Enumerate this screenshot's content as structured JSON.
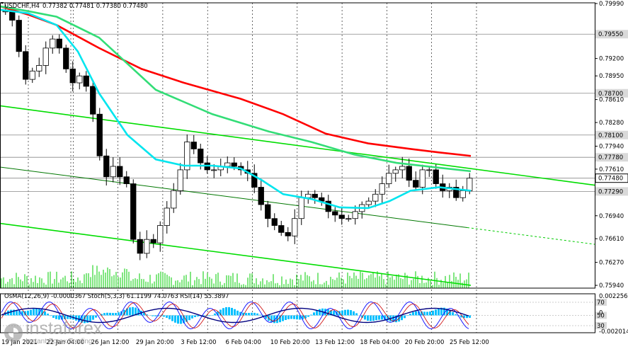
{
  "header": {
    "symbol": "USDCHF,H4",
    "ohlc": "0.77382 0.77481 0.77380 0.77480",
    "indicators": "OsMA(12,26,9) -0.0000367   Stoch(5,3,3) 61.1199 74.0763   RSI(14) 55.3897"
  },
  "logo": {
    "brand": "instaforex",
    "slogan": "Instant Forex Trading"
  },
  "chart_data": {
    "type": "candlestick",
    "price_axis": {
      "ylim": [
        0.759,
        0.8
      ],
      "tick_labels": [
        "0.79990",
        "0.79200",
        "0.78950",
        "0.78610",
        "0.78280",
        "0.77940",
        "0.77610",
        "0.76940",
        "0.76610",
        "0.76270",
        "0.75940"
      ],
      "tick_values": [
        0.7999,
        0.792,
        0.7895,
        0.7861,
        0.7828,
        0.7794,
        0.7761,
        0.7694,
        0.7661,
        0.7627,
        0.7594
      ]
    },
    "level_labels": [
      {
        "label": "0.79550",
        "value": 0.7955,
        "highlight": false
      },
      {
        "label": "0.78700",
        "value": 0.787,
        "highlight": false
      },
      {
        "label": "0.78100",
        "value": 0.781,
        "highlight": false
      },
      {
        "label": "0.77780",
        "value": 0.7778,
        "highlight": false
      },
      {
        "label": "0.77480",
        "value": 0.7748,
        "highlight": true
      },
      {
        "label": "0.77290",
        "value": 0.7729,
        "highlight": false
      }
    ],
    "time_labels": [
      "19 Jan 2021",
      "22 Jan 04:00",
      "26 Jan 12:00",
      "29 Jan 20:00",
      "3 Feb 12:00",
      "6 Feb 04:00",
      "10 Feb 20:00",
      "13 Feb 12:00",
      "18 Feb 04:00",
      "20 Feb 20:00",
      "25 Feb 12:00"
    ],
    "ma_series": [
      {
        "color": "#ff0000",
        "points": [
          [
            0,
            0.7995
          ],
          [
            40,
            0.7983
          ],
          [
            80,
            0.7968
          ],
          [
            140,
            0.7935
          ],
          [
            200,
            0.7905
          ],
          [
            260,
            0.7885
          ],
          [
            340,
            0.7862
          ],
          [
            400,
            0.784
          ],
          [
            460,
            0.7812
          ],
          [
            520,
            0.7798
          ],
          [
            580,
            0.779
          ],
          [
            620,
            0.7785
          ],
          [
            665,
            0.778
          ]
        ]
      },
      {
        "color": "#33dd77",
        "points": [
          [
            0,
            0.7995
          ],
          [
            40,
            0.7988
          ],
          [
            80,
            0.798
          ],
          [
            140,
            0.795
          ],
          [
            220,
            0.7875
          ],
          [
            300,
            0.784
          ],
          [
            380,
            0.7815
          ],
          [
            440,
            0.78
          ],
          [
            500,
            0.7782
          ],
          [
            560,
            0.777
          ],
          [
            620,
            0.7763
          ],
          [
            665,
            0.7758
          ]
        ]
      },
      {
        "color": "#00e5ee",
        "points": [
          [
            0,
            0.799
          ],
          [
            40,
            0.7985
          ],
          [
            80,
            0.7968
          ],
          [
            110,
            0.793
          ],
          [
            140,
            0.787
          ],
          [
            180,
            0.781
          ],
          [
            220,
            0.7775
          ],
          [
            260,
            0.7766
          ],
          [
            300,
            0.7766
          ],
          [
            340,
            0.7762
          ],
          [
            370,
            0.7745
          ],
          [
            400,
            0.7725
          ],
          [
            440,
            0.7718
          ],
          [
            480,
            0.7706
          ],
          [
            520,
            0.7705
          ],
          [
            550,
            0.7715
          ],
          [
            580,
            0.773
          ],
          [
            620,
            0.7735
          ],
          [
            665,
            0.773
          ]
        ]
      }
    ],
    "trend_lines": [
      {
        "color": "#00dd00",
        "points": [
          [
            0,
            0.7852
          ],
          [
            840,
            0.7738
          ]
        ],
        "width": 1.6
      },
      {
        "color": "#007700",
        "points": [
          [
            0,
            0.7764
          ],
          [
            660,
            0.7677
          ]
        ],
        "width": 1.0
      },
      {
        "color": "#00cc00",
        "points": [
          [
            660,
            0.7677
          ],
          [
            840,
            0.7653
          ]
        ],
        "width": 1.0,
        "dotted": true
      },
      {
        "color": "#00dd00",
        "points": [
          [
            0,
            0.7683
          ],
          [
            665,
            0.7594
          ]
        ],
        "width": 1.6
      }
    ],
    "candles_close": [
      0.7988,
      0.7975,
      0.793,
      0.789,
      0.7902,
      0.791,
      0.7935,
      0.7948,
      0.7935,
      0.7905,
      0.7885,
      0.7895,
      0.788,
      0.784,
      0.778,
      0.775,
      0.7765,
      0.775,
      0.774,
      0.766,
      0.764,
      0.766,
      0.7655,
      0.768,
      0.7705,
      0.773,
      0.776,
      0.78,
      0.779,
      0.777,
      0.776,
      0.776,
      0.7765,
      0.777,
      0.7765,
      0.776,
      0.7755,
      0.7735,
      0.771,
      0.769,
      0.768,
      0.767,
      0.7665,
      0.769,
      0.772,
      0.7725,
      0.772,
      0.7715,
      0.77,
      0.7695,
      0.769,
      0.769,
      0.77,
      0.771,
      0.7715,
      0.7725,
      0.774,
      0.7755,
      0.776,
      0.7765,
      0.7745,
      0.7735,
      0.776,
      0.776,
      0.774,
      0.773,
      0.7735,
      0.772,
      0.773,
      0.7748
    ],
    "osma_axis": {
      "tick_labels": [
        "0.0022561",
        "0",
        "-0.0020145"
      ]
    },
    "oscillator_levels": {
      "tick_labels": [
        "70",
        "50",
        "30"
      ]
    }
  }
}
